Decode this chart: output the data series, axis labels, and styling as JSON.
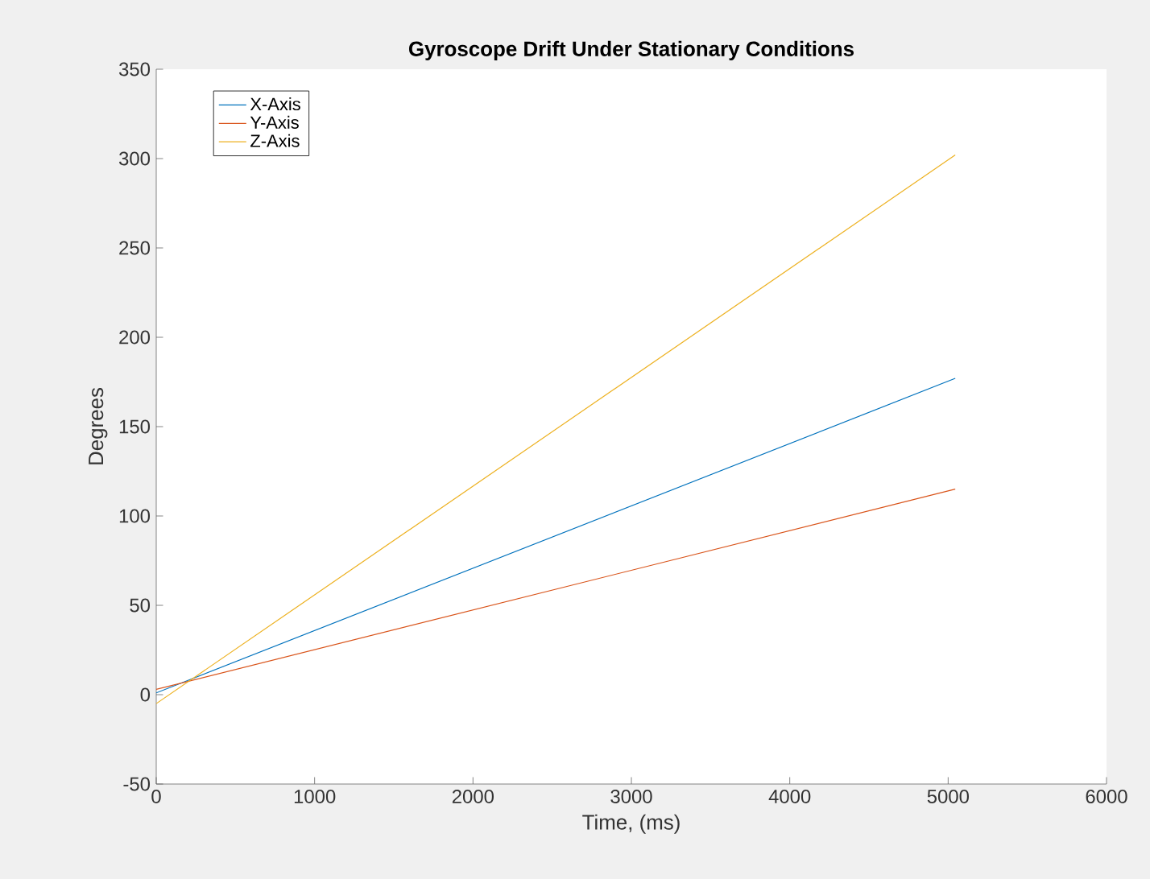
{
  "chart_data": {
    "type": "line",
    "title": "Gyroscope Drift Under Stationary Conditions",
    "xlabel": "Time, (ms)",
    "ylabel": "Degrees",
    "xlim": [
      0,
      6000
    ],
    "xticks": [
      0,
      1000,
      2000,
      3000,
      4000,
      5000,
      6000
    ],
    "ylim": [
      -50,
      350
    ],
    "yticks": [
      -50,
      0,
      50,
      100,
      150,
      200,
      250,
      300,
      350
    ],
    "legend": "top left",
    "grid": false,
    "marker": "none",
    "line_style": "solid",
    "x": [
      0,
      5045
    ],
    "series": [
      {
        "name": "X-Axis",
        "color": "#0072bd",
        "values": [
          1,
          177
        ]
      },
      {
        "name": "Y-Axis",
        "color": "#d95319",
        "values": [
          3,
          115
        ]
      },
      {
        "name": "Z-Axis",
        "color": "#edb120",
        "values": [
          -5,
          302
        ]
      }
    ]
  }
}
